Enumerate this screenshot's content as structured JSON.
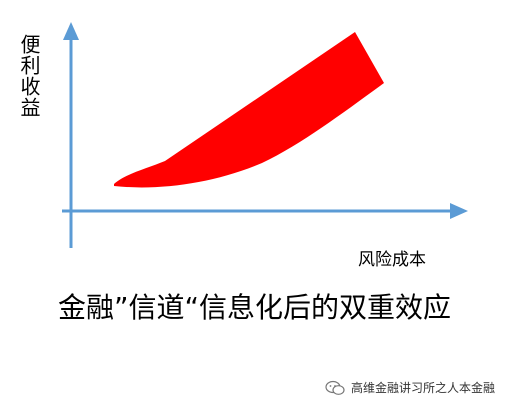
{
  "diagram": {
    "y_axis_label": "便利收益",
    "x_axis_label": "风险成本",
    "caption": "金融”信道“信息化后的双重效应",
    "colors": {
      "axis": "#5b9bd5",
      "band": "#ff0000",
      "text": "#000000"
    }
  },
  "watermark": {
    "text": "高维金融讲习所之人本金融",
    "icon": "wechat-icon"
  }
}
